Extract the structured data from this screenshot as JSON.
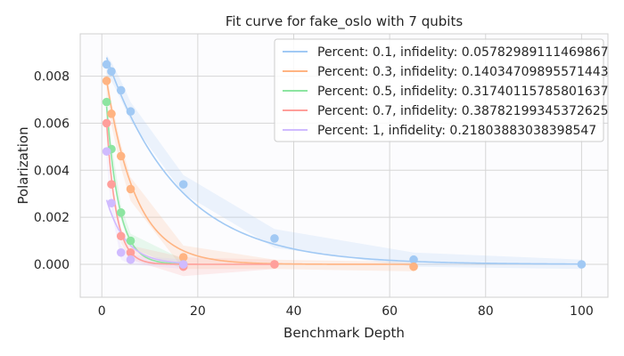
{
  "chart_data": {
    "type": "line",
    "title": "Fit curve for fake_oslo with 7 qubits",
    "xlabel": "Benchmark Depth",
    "ylabel": "Polarization",
    "xlim": [
      -4.5,
      105.5
    ],
    "ylim": [
      -0.0014,
      0.0098
    ],
    "xticks": [
      0,
      20,
      40,
      60,
      80,
      100
    ],
    "xtick_labels": [
      "0",
      "20",
      "40",
      "60",
      "80",
      "100"
    ],
    "yticks": [
      0.0,
      0.002,
      0.004,
      0.006,
      0.008
    ],
    "ytick_labels": [
      "0.000",
      "0.002",
      "0.004",
      "0.006",
      "0.008"
    ],
    "grid": true,
    "legend_position": "top-right",
    "series": [
      {
        "name": "Percent: 0.1, infidelity: 0.05782989111469867",
        "color": "#a1c9f4",
        "x": [
          1,
          2,
          4,
          6,
          17,
          36,
          65,
          100
        ],
        "y": [
          0.0085,
          0.0082,
          0.0074,
          0.0065,
          0.0034,
          0.0011,
          0.0002,
          0.0
        ],
        "err": [
          0.0004,
          0.0004,
          0.0004,
          0.0004,
          0.0004,
          0.0004,
          0.0003,
          0.0002
        ],
        "fit": {
          "a": 0.0094,
          "b": 0.0,
          "rate": 0.0667
        }
      },
      {
        "name": "Percent: 0.3, infidelity: 0.14034709895571443",
        "color": "#ffb482",
        "x": [
          1,
          2,
          4,
          6,
          17,
          36,
          65
        ],
        "y": [
          0.0078,
          0.0064,
          0.0046,
          0.0032,
          0.0003,
          0.0,
          -0.0001
        ],
        "err": [
          0.0005,
          0.0005,
          0.0005,
          0.0005,
          0.0005,
          0.0002,
          0.0002
        ],
        "fit": {
          "a": 0.0092,
          "b": 0.0,
          "rate": 0.163
        }
      },
      {
        "name": "Percent: 0.5, infidelity: 0.31740115785801637",
        "color": "#8de5a1",
        "x": [
          1,
          2,
          4,
          6,
          17
        ],
        "y": [
          0.0069,
          0.0049,
          0.0022,
          0.001,
          0.0
        ],
        "err": [
          0.0004,
          0.0003,
          0.0003,
          0.0003,
          0.0002
        ],
        "fit": {
          "a": 0.0098,
          "b": 0.0,
          "rate": 0.38
        }
      },
      {
        "name": "Percent: 0.7, infidelity: 0.38782199345372625",
        "color": "#ff9f9b",
        "x": [
          1,
          2,
          4,
          6,
          17,
          36
        ],
        "y": [
          0.006,
          0.0034,
          0.0012,
          0.0005,
          -0.0001,
          0.0
        ],
        "err": [
          0.0004,
          0.0003,
          0.0003,
          0.0003,
          0.0004,
          0.0002
        ],
        "fit": {
          "a": 0.0098,
          "b": 0.0,
          "rate": 0.49
        }
      },
      {
        "name": "Percent: 1, infidelity: 0.21803883038398547",
        "color": "#d0bbff",
        "x": [
          1,
          2,
          4,
          6,
          17
        ],
        "y": [
          0.0048,
          0.0026,
          0.0005,
          0.0002,
          0.0
        ],
        "err": [
          0.0003,
          0.0003,
          0.0003,
          0.0002,
          0.0002
        ],
        "fit": {
          "a": 0.0035,
          "b": 0.0,
          "rate": 0.245
        }
      }
    ]
  }
}
